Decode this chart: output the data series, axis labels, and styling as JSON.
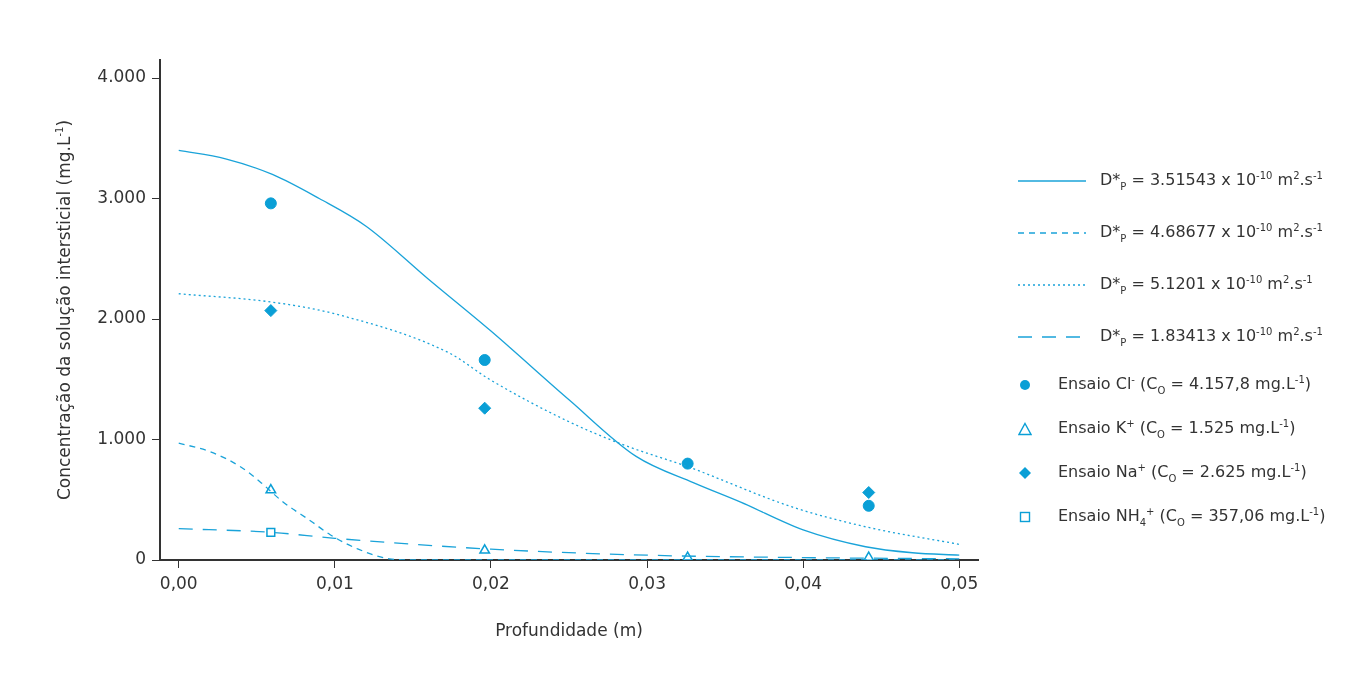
{
  "chart_data": {
    "type": "line",
    "xlabel": "Profundidade (m)",
    "ylabel": "Concentração da solução intersticial (mg.L$^{-1}$)",
    "xlim": [
      -0.0012,
      0.0512
    ],
    "xticks": [
      {
        "value": 0,
        "label": "0,00"
      },
      {
        "value": 0.01,
        "label": "0,01"
      },
      {
        "value": 0.02,
        "label": "0,02"
      },
      {
        "value": 0.03,
        "label": "0,03"
      },
      {
        "value": 0.04,
        "label": "0,04"
      },
      {
        "value": 0.05,
        "label": "0,05"
      }
    ],
    "ylim": [
      0,
      4150
    ],
    "yticks": [
      0,
      {
        "value": 1000,
        "label": "1.000"
      },
      {
        "value": 2000,
        "label": "2.000"
      },
      {
        "value": 3000,
        "label": "3.000"
      },
      {
        "value": 4000,
        "label": "4.000"
      }
    ],
    "grid": false,
    "legend": "right",
    "series": [
      {
        "type": "line",
        "name": "D*$_{P}$ = 3.51543 x 10$^{-10}$ m$^{2}$.s$^{-1}$",
        "color": "#1aa3d9",
        "line_style": "solid",
        "marker": "none",
        "x": [
          0,
          0.003,
          0.006,
          0.009,
          0.012,
          0.016,
          0.02,
          0.025,
          0.0293,
          0.033,
          0.036,
          0.04,
          0.044,
          0.047,
          0.05
        ],
        "values": [
          3400,
          3330,
          3200,
          3000,
          2770,
          2330,
          1900,
          1330,
          860,
          640,
          480,
          250,
          110,
          60,
          40
        ]
      },
      {
        "type": "line",
        "name": "D*$_{P}$ = 4.68677 x 10$^{-10}$ m$^{2}$.s$^{-1}$",
        "color": "#1aa3d9",
        "line_style": "dashed",
        "marker": "none",
        "x": [
          0,
          0.002,
          0.004,
          0.0052,
          0.0067,
          0.0085,
          0.0097,
          0.0115,
          0.0135,
          0.015,
          0.025,
          0.037,
          0.05
        ],
        "values": [
          970,
          900,
          770,
          650,
          480,
          320,
          210,
          90,
          10,
          0,
          0,
          0,
          0
        ]
      },
      {
        "type": "line",
        "name": "D*$_{P}$ = 5.1201 x 10$^{-10}$ m$^{2}$.s$^{-1}$",
        "color": "#1aa3d9",
        "line_style": "dotted",
        "marker": "none",
        "x": [
          0,
          0.006,
          0.0101,
          0.0173,
          0.0199,
          0.0248,
          0.0284,
          0.0327,
          0.0393,
          0.0442,
          0.05
        ],
        "values": [
          2210,
          2140,
          2040,
          1720,
          1500,
          1160,
          960,
          770,
          440,
          270,
          130
        ]
      },
      {
        "type": "line",
        "name": "D*$_{P}$ = 1.83413 x 10$^{-10}$ m$^{2}$.s$^{-1}$",
        "color": "#1aa3d9",
        "line_style": "longdash",
        "marker": "none",
        "x": [
          0,
          0.0059,
          0.01,
          0.02,
          0.03,
          0.04,
          0.05
        ],
        "values": [
          260,
          230,
          180,
          90,
          40,
          20,
          10
        ]
      },
      {
        "type": "scatter",
        "name": "Ensaio Cl$^{-}$ (C$_{O}$ = 4.157,8 mg.L$^{-1}$)",
        "color": "#0a9fd6",
        "marker": "circle",
        "x": [
          0.0059,
          0.0196,
          0.0326,
          0.0442
        ],
        "values": [
          2960,
          1660,
          800,
          450
        ]
      },
      {
        "type": "scatter",
        "name": "Ensaio K$^{+}$ (C$_{O}$ = 1.525 mg.L$^{-1}$)",
        "color": "#0a9fd6",
        "marker": "triangle",
        "x": [
          0.0059,
          0.0196,
          0.0326,
          0.0442
        ],
        "values": [
          580,
          80,
          20,
          20
        ]
      },
      {
        "type": "scatter",
        "name": "Ensaio Na$^{+}$ (C$_{O}$ = 2.625 mg.L$^{-1}$)",
        "color": "#0a9fd6",
        "marker": "diamond",
        "x": [
          0.0059,
          0.0196,
          0.0442
        ],
        "values": [
          2070,
          1260,
          560
        ]
      },
      {
        "type": "scatter",
        "name": "Ensaio NH$_{4}$$^{+}$ (C$_{O}$ = 357,06 mg.L$^{-1}$)",
        "color": "#0a9fd6",
        "marker": "square",
        "x": [
          0.0059
        ],
        "values": [
          230
        ]
      }
    ]
  }
}
